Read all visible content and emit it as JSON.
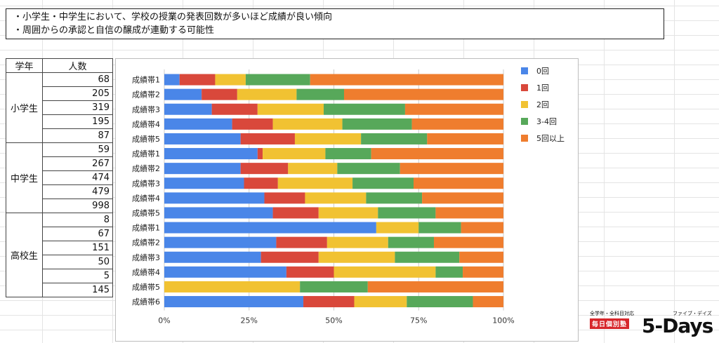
{
  "notes": [
    "・小学生・中学生において、学校の授業の発表回数が多いほど成績が良い傾向",
    "・周囲からの承認と自信の醸成が連動する可能性"
  ],
  "table": {
    "headers": [
      "学年",
      "人数"
    ],
    "groups": [
      {
        "grade": "小学生",
        "counts": [
          "68",
          "205",
          "319",
          "195",
          "87"
        ]
      },
      {
        "grade": "中学生",
        "counts": [
          "59",
          "267",
          "474",
          "479",
          "998"
        ]
      },
      {
        "grade": "高校生",
        "counts": [
          "8",
          "67",
          "151",
          "50",
          "5",
          "145"
        ]
      }
    ]
  },
  "chart_data": {
    "type": "bar",
    "orientation": "horizontal",
    "stacked": "percent",
    "categories": [
      "成績帯1",
      "成績帯2",
      "成績帯3",
      "成績帯4",
      "成績帯5",
      "成績帯1",
      "成績帯2",
      "成績帯3",
      "成績帯4",
      "成績帯5",
      "成績帯1",
      "成績帯2",
      "成績帯3",
      "成績帯4",
      "成績帯5",
      "成績帯6"
    ],
    "series": [
      {
        "name": "0回",
        "color": "#4a86e8",
        "values": [
          4.5,
          11,
          14,
          20,
          22.5,
          27.5,
          22.5,
          23.5,
          29.5,
          32,
          62.5,
          33,
          28.5,
          36,
          0,
          41
        ]
      },
      {
        "name": "1回",
        "color": "#d9483b",
        "values": [
          10.5,
          10.5,
          13.5,
          12,
          16,
          1.5,
          14,
          10,
          12,
          13.5,
          0,
          15,
          17,
          14,
          0,
          15
        ]
      },
      {
        "name": "2回",
        "color": "#f1c232",
        "values": [
          9,
          17.5,
          19.5,
          20.5,
          19.5,
          18.5,
          14.5,
          22,
          18,
          17.5,
          12.5,
          18,
          22.5,
          30,
          40,
          15.5
        ]
      },
      {
        "name": "3-4回",
        "color": "#57a85a",
        "values": [
          19,
          14,
          24,
          20.5,
          19.5,
          13.5,
          18.5,
          18,
          16.5,
          17,
          12.5,
          13.5,
          19,
          8,
          20,
          19.5
        ]
      },
      {
        "name": "5回以上",
        "color": "#ef7d2e",
        "values": [
          57,
          47,
          29,
          27,
          22.5,
          39,
          30.5,
          26.5,
          24,
          20,
          12.5,
          20.5,
          13,
          12,
          40,
          9
        ]
      }
    ],
    "xlim": [
      0,
      100
    ],
    "xticks": [
      "0%",
      "25%",
      "50%",
      "75%",
      "100%"
    ],
    "legend_position": "right"
  },
  "logo": {
    "small_text": "全学年・全科目対応",
    "badge_text": "毎日個別塾",
    "kana": "ファイブ・デイズ",
    "main_text": "5-Days"
  }
}
